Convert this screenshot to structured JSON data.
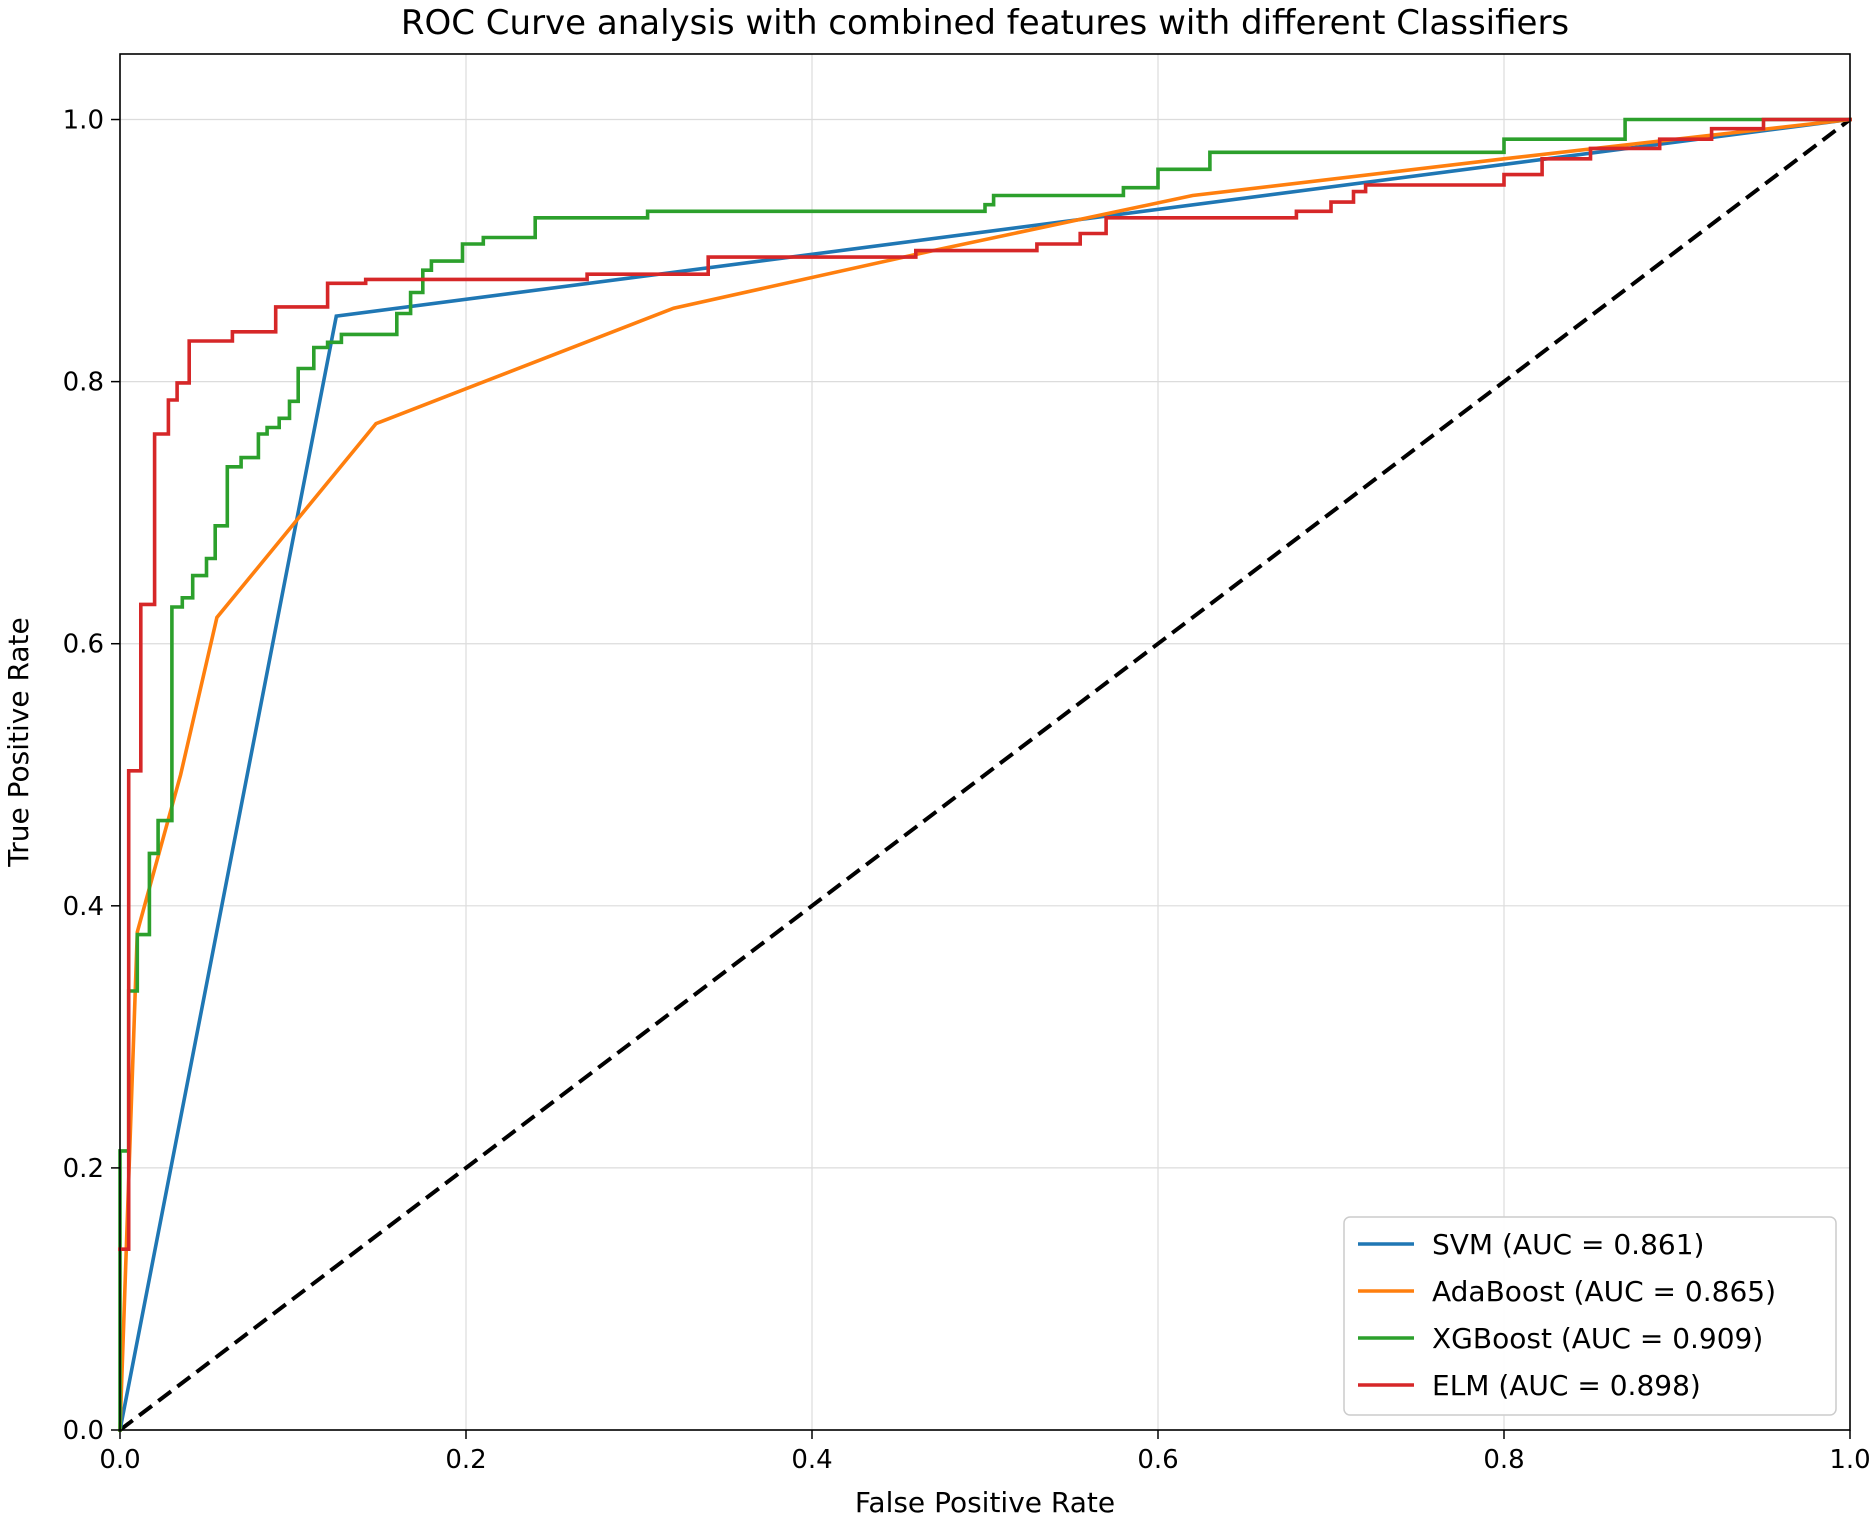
{
  "chart_data": {
    "type": "line",
    "title": "ROC Curve analysis with combined features with different Classifiers",
    "xlabel": "False Positive Rate",
    "ylabel": "True Positive Rate",
    "xlim": [
      0.0,
      1.0
    ],
    "ylim": [
      0.0,
      1.05
    ],
    "xticks": [
      0.0,
      0.2,
      0.4,
      0.6,
      0.8,
      1.0
    ],
    "yticks": [
      0.0,
      0.2,
      0.4,
      0.6,
      0.8,
      1.0
    ],
    "xtick_labels": [
      "0.0",
      "0.2",
      "0.4",
      "0.6",
      "0.8",
      "1.0"
    ],
    "ytick_labels": [
      "0.0",
      "0.2",
      "0.4",
      "0.6",
      "0.8",
      "1.0"
    ],
    "grid": true,
    "legend_position": "bottom-right",
    "series": [
      {
        "name": "SVM (AUC = 0.861)",
        "color": "#1f77b4",
        "x": [
          0.0,
          0.125,
          1.0
        ],
        "y": [
          0.0,
          0.85,
          1.0
        ]
      },
      {
        "name": "AdaBoost (AUC = 0.865)",
        "color": "#ff7f0e",
        "x": [
          0.0,
          0.01,
          0.035,
          0.056,
          0.148,
          0.32,
          0.47,
          0.62,
          0.8,
          1.0
        ],
        "y": [
          0.0,
          0.38,
          0.5,
          0.62,
          0.768,
          0.856,
          0.9,
          0.942,
          0.97,
          1.0
        ]
      },
      {
        "name": "XGBoost (AUC = 0.909)",
        "color": "#2ca02c",
        "x": [
          0.0,
          0.0,
          0.005,
          0.005,
          0.01,
          0.01,
          0.017,
          0.017,
          0.022,
          0.022,
          0.03,
          0.03,
          0.036,
          0.036,
          0.042,
          0.042,
          0.05,
          0.05,
          0.055,
          0.055,
          0.062,
          0.062,
          0.07,
          0.07,
          0.08,
          0.08,
          0.085,
          0.085,
          0.092,
          0.092,
          0.098,
          0.098,
          0.103,
          0.103,
          0.112,
          0.112,
          0.12,
          0.12,
          0.128,
          0.128,
          0.135,
          0.135,
          0.16,
          0.16,
          0.168,
          0.168,
          0.175,
          0.175,
          0.18,
          0.18,
          0.187,
          0.187,
          0.198,
          0.198,
          0.21,
          0.21,
          0.24,
          0.24,
          0.305,
          0.305,
          0.5,
          0.5,
          0.505,
          0.505,
          0.535,
          0.535,
          0.58,
          0.58,
          0.6,
          0.6,
          0.63,
          0.63,
          0.8,
          0.8,
          0.87,
          0.87,
          1.0
        ],
        "y": [
          0.0,
          0.213,
          0.213,
          0.335,
          0.335,
          0.378,
          0.378,
          0.44,
          0.44,
          0.465,
          0.465,
          0.628,
          0.628,
          0.635,
          0.635,
          0.652,
          0.652,
          0.665,
          0.665,
          0.69,
          0.69,
          0.735,
          0.735,
          0.742,
          0.742,
          0.76,
          0.76,
          0.765,
          0.765,
          0.772,
          0.772,
          0.785,
          0.785,
          0.81,
          0.81,
          0.826,
          0.826,
          0.83,
          0.83,
          0.836,
          0.836,
          0.836,
          0.836,
          0.852,
          0.852,
          0.868,
          0.868,
          0.885,
          0.885,
          0.892,
          0.892,
          0.892,
          0.892,
          0.905,
          0.905,
          0.91,
          0.91,
          0.925,
          0.925,
          0.93,
          0.93,
          0.935,
          0.935,
          0.942,
          0.942,
          0.942,
          0.942,
          0.948,
          0.948,
          0.962,
          0.962,
          0.975,
          0.975,
          0.985,
          0.985,
          1.0,
          1.0
        ]
      },
      {
        "name": "ELM (AUC = 0.898)",
        "color": "#d62728",
        "x": [
          0.0,
          0.005,
          0.005,
          0.012,
          0.012,
          0.02,
          0.02,
          0.028,
          0.028,
          0.033,
          0.033,
          0.04,
          0.04,
          0.065,
          0.065,
          0.09,
          0.09,
          0.12,
          0.12,
          0.142,
          0.142,
          0.27,
          0.27,
          0.34,
          0.34,
          0.46,
          0.46,
          0.53,
          0.53,
          0.555,
          0.555,
          0.57,
          0.57,
          0.62,
          0.62,
          0.68,
          0.68,
          0.7,
          0.7,
          0.713,
          0.713,
          0.72,
          0.72,
          0.74,
          0.74,
          0.8,
          0.8,
          0.822,
          0.822,
          0.85,
          0.85,
          0.89,
          0.89,
          0.92,
          0.92,
          0.95,
          0.95,
          1.0
        ],
        "y": [
          0.138,
          0.138,
          0.503,
          0.503,
          0.63,
          0.63,
          0.76,
          0.76,
          0.786,
          0.786,
          0.799,
          0.799,
          0.831,
          0.831,
          0.838,
          0.838,
          0.857,
          0.857,
          0.875,
          0.875,
          0.878,
          0.878,
          0.882,
          0.882,
          0.895,
          0.895,
          0.9,
          0.9,
          0.905,
          0.905,
          0.913,
          0.913,
          0.925,
          0.925,
          0.925,
          0.925,
          0.93,
          0.93,
          0.937,
          0.937,
          0.945,
          0.945,
          0.95,
          0.95,
          0.95,
          0.95,
          0.958,
          0.958,
          0.97,
          0.97,
          0.978,
          0.978,
          0.985,
          0.985,
          0.993,
          0.993,
          1.0,
          1.0
        ]
      }
    ],
    "reference_line": {
      "name": "chance",
      "color": "#000000",
      "style": "dashed",
      "x": [
        0.0,
        1.0
      ],
      "y": [
        0.0,
        1.0
      ]
    }
  }
}
